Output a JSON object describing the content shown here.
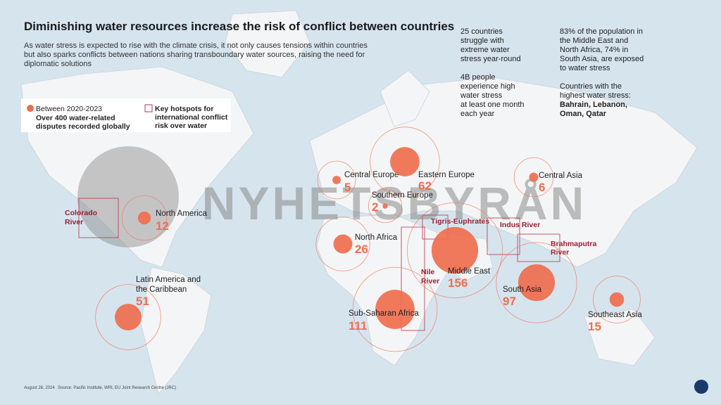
{
  "header": {
    "title": "Diminishing water resources increase the risk of conflict between countries",
    "subtitle": [
      "As water stress is expected to rise with the climate crisis, it not only causes tensions within countries",
      "but also sparks conflicts between nations sharing transboundary water sources, raising the need for",
      "diplomatic solutions"
    ]
  },
  "stats": {
    "col1": [
      "25 countries",
      "struggle with",
      "extreme water",
      "stress year-round",
      "",
      "4B people",
      "experience high",
      "water stress",
      "at least one month",
      "each year"
    ],
    "col2": [
      "83% of the population in",
      "the Middle East and",
      "North Africa, 74% in",
      "South Asia, are exposed",
      "to water stress",
      "",
      "Countries with the",
      "highest water stress:"
    ],
    "col2_bold": [
      "Bahrain, Lebanon,",
      "Oman, Qatar"
    ]
  },
  "legend": {
    "period": "Between 2020-2023",
    "disputes": [
      "Over 400 water-related",
      "disputes recorded globally"
    ],
    "hotspots": [
      "Key hotspots for",
      "international conflict",
      "risk over water"
    ]
  },
  "regions": [
    {
      "name": "Central Europe",
      "value": 5
    },
    {
      "name": "Eastern Europe",
      "value": 62
    },
    {
      "name": "Southern Europe",
      "value": 2
    },
    {
      "name": "Central Asia",
      "value": 6
    },
    {
      "name": "North America",
      "value": 12
    },
    {
      "name": "North Africa",
      "value": 26
    },
    {
      "name": "Middle East",
      "value": 156
    },
    {
      "name": "Latin America and the Caribbean",
      "value": 51
    },
    {
      "name": "Sub-Saharan Africa",
      "value": 111
    },
    {
      "name": "South Asia",
      "value": 97
    },
    {
      "name": "Southeast Asia",
      "value": 15
    }
  ],
  "hotspots": [
    "Colorado River",
    "Tigris-Euphrates",
    "Indus River",
    "Brahmaputra River",
    "Nile River"
  ],
  "watermark": "NYHETSBYRÅN",
  "footer": {
    "date": "August 26, 2024",
    "source": "Source: Pacific Institute, WRI, EU Joint Research Centre (JRC)"
  }
}
